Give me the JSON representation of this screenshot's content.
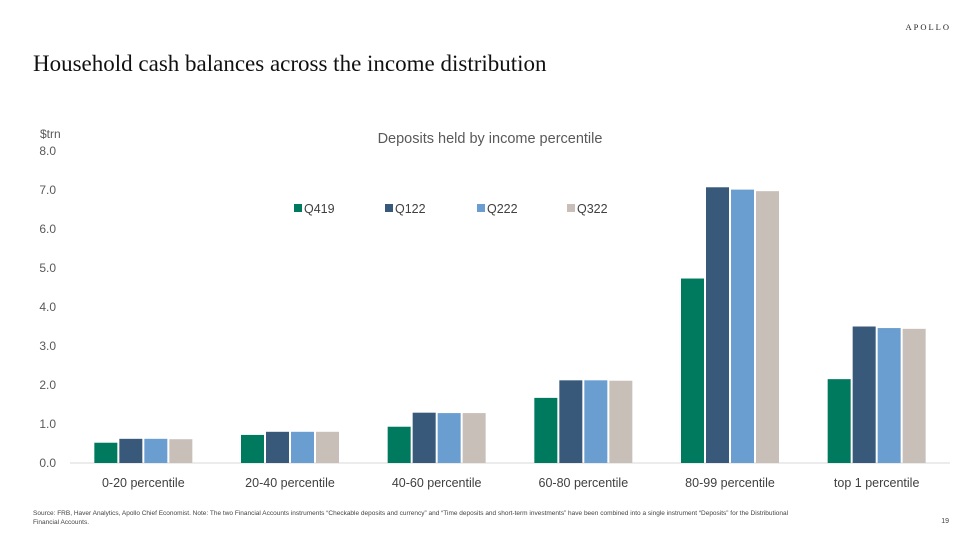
{
  "brand": "APOLLO",
  "page_title": "Household cash balances across the income distribution",
  "page_number": "19",
  "source_note": "Source: FRB, Haver Analytics, Apollo Chief Economist. Note: The two Financial Accounts instruments “Checkable deposits and currency” and “Time deposits and short-term investments” have been combined into a single instrument “Deposits” for the Distributional Financial Accounts.",
  "chart_data": {
    "type": "bar",
    "title": "Deposits held by income percentile",
    "ylabel": "$trn",
    "xlabel": "",
    "ylim": [
      0,
      8
    ],
    "yticks": [
      "0.0",
      "1.0",
      "2.0",
      "3.0",
      "4.0",
      "5.0",
      "6.0",
      "7.0",
      "8.0"
    ],
    "grid": false,
    "legend_position": "top-center",
    "categories": [
      "0-20 percentile",
      "20-40 percentile",
      "40-60 percentile",
      "60-80 percentile",
      "80-99 percentile",
      "top 1 percentile"
    ],
    "series": [
      {
        "name": "Q419",
        "color": "#007a5e",
        "values": [
          0.52,
          0.72,
          0.93,
          1.67,
          4.73,
          2.15
        ]
      },
      {
        "name": "Q122",
        "color": "#38597a",
        "values": [
          0.62,
          0.8,
          1.29,
          2.12,
          7.07,
          3.5
        ]
      },
      {
        "name": "Q222",
        "color": "#6a9ed0",
        "values": [
          0.62,
          0.8,
          1.28,
          2.12,
          7.01,
          3.46
        ]
      },
      {
        "name": "Q322",
        "color": "#c8c0b8",
        "values": [
          0.61,
          0.8,
          1.28,
          2.11,
          6.97,
          3.44
        ]
      }
    ]
  }
}
